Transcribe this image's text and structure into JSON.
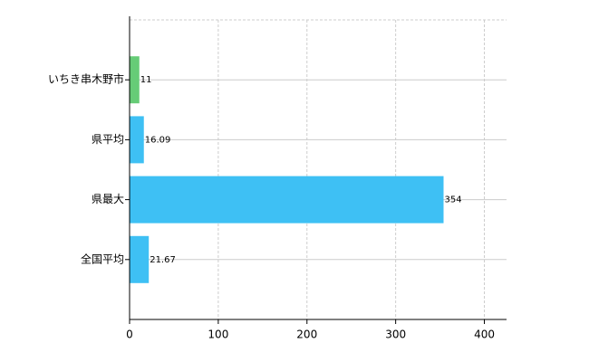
{
  "chart_data": {
    "type": "barh",
    "categories": [
      "いちき串木野市",
      "県平均",
      "県最大",
      "全国平均"
    ],
    "values": [
      11,
      16.09,
      354,
      21.67
    ],
    "colors": [
      "#66cc77",
      "#3ec0f4",
      "#3ec0f4",
      "#3ec0f4"
    ],
    "xlim": [
      0,
      425
    ],
    "xticks": [
      0,
      100,
      200,
      300,
      400
    ],
    "grid": true
  }
}
